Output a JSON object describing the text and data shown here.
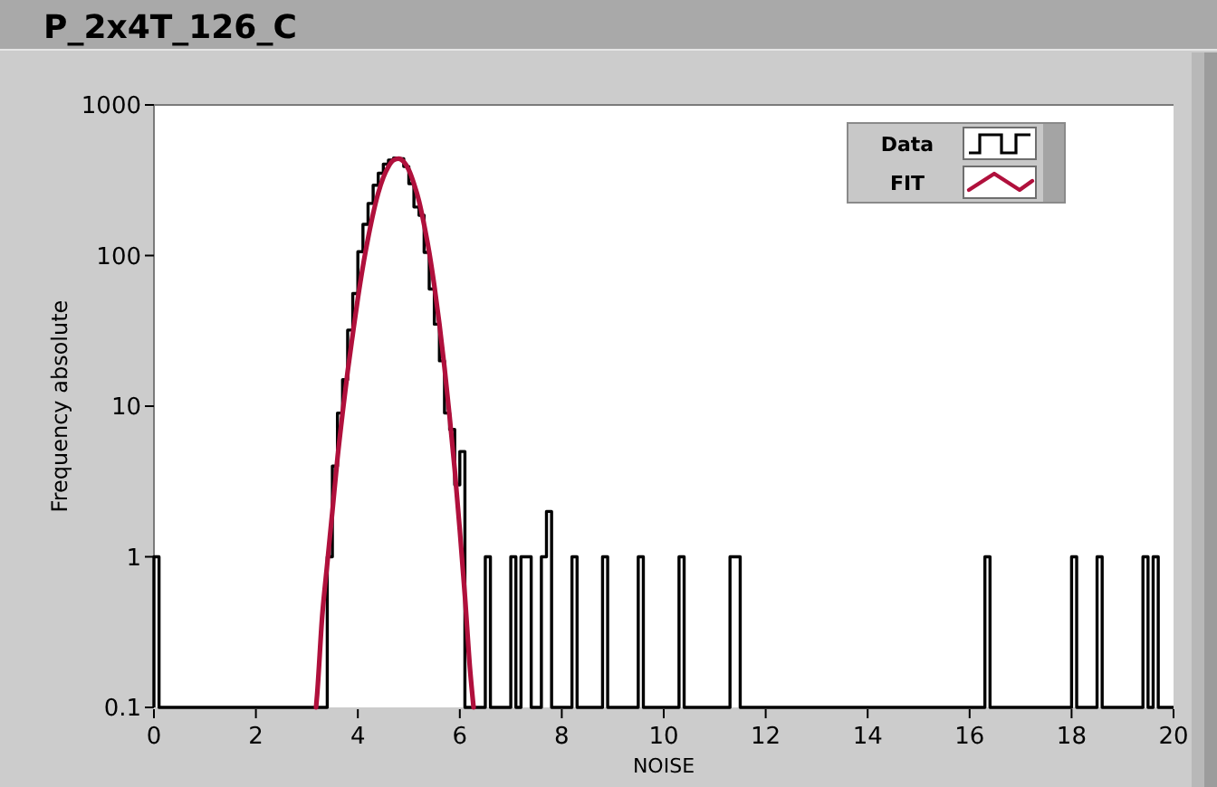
{
  "chart_data": {
    "type": "histogram",
    "title": "P_2x4T_126_C",
    "xlabel": "NOISE",
    "ylabel": "Frequency absolute",
    "xlim": [
      0,
      20
    ],
    "xticks": [
      0,
      2,
      4,
      6,
      8,
      10,
      12,
      14,
      16,
      18,
      20
    ],
    "ylim": [
      0.1,
      1000
    ],
    "yticks": [
      0.1,
      1,
      10,
      100,
      1000
    ],
    "log": "y",
    "legend": "top right",
    "series": [
      {
        "name": "Data",
        "color": "#000000",
        "bins": [
          0,
          0.1,
          0.2,
          0.3,
          0.4,
          0.5,
          0.6,
          0.7,
          0.8,
          0.9,
          1,
          1.1,
          1.2,
          1.3,
          1.4,
          1.5,
          1.6,
          1.7,
          1.8,
          1.9,
          2,
          2.1,
          2.2,
          2.3,
          2.4,
          2.5,
          2.6,
          2.7,
          2.8,
          2.9,
          3,
          3.1,
          3.2,
          3.3,
          3.4,
          3.5,
          3.6,
          3.7,
          3.8,
          3.9,
          4,
          4.1,
          4.2,
          4.3,
          4.4,
          4.5,
          4.6,
          4.7,
          4.8,
          4.9,
          5,
          5.1,
          5.2,
          5.3,
          5.4,
          5.5,
          5.6,
          5.7,
          5.8,
          5.9,
          6,
          6.1,
          6.2,
          6.3,
          6.4,
          6.5,
          6.6,
          6.7,
          6.8,
          6.9,
          7,
          7.1,
          7.2,
          7.3,
          7.4,
          7.5,
          7.6,
          7.7,
          7.8,
          7.9,
          8,
          8.1,
          8.2,
          8.3,
          8.4,
          8.5,
          8.6,
          8.7,
          8.8,
          8.9,
          9,
          9.1,
          9.2,
          9.3,
          9.4,
          9.5,
          9.6,
          9.7,
          9.8,
          9.9,
          10,
          10.1,
          10.2,
          10.3,
          10.4,
          10.5,
          10.6,
          10.7,
          10.8,
          10.9,
          11,
          11.1,
          11.2,
          11.3,
          11.4,
          11.5,
          11.6,
          11.7,
          11.8,
          11.9,
          12,
          12.1,
          12.2,
          12.3,
          12.4,
          12.5,
          12.6,
          12.7,
          12.8,
          12.9,
          13,
          13.1,
          13.2,
          13.3,
          13.4,
          13.5,
          13.6,
          13.7,
          13.8,
          13.9,
          14,
          14.1,
          14.2,
          14.3,
          14.4,
          14.5,
          14.6,
          14.7,
          14.8,
          14.9,
          15,
          15.1,
          15.2,
          15.3,
          15.4,
          15.5,
          15.6,
          15.7,
          15.8,
          15.9,
          16,
          16.1,
          16.2,
          16.3,
          16.4,
          16.5,
          16.6,
          16.7,
          16.8,
          16.9,
          17,
          17.1,
          17.2,
          17.3,
          17.4,
          17.5,
          17.6,
          17.7,
          17.8,
          17.9,
          18,
          18.1,
          18.2,
          18.3,
          18.4,
          18.5,
          18.6,
          18.7,
          18.8,
          18.9,
          19,
          19.1,
          19.2,
          19.3,
          19.4,
          19.5,
          19.6,
          19.7,
          19.8,
          19.9,
          20
        ],
        "values": [
          1,
          null,
          null,
          null,
          null,
          null,
          null,
          null,
          null,
          null,
          null,
          null,
          null,
          null,
          null,
          null,
          null,
          null,
          null,
          null,
          null,
          null,
          null,
          null,
          null,
          null,
          null,
          null,
          null,
          null,
          null,
          null,
          null,
          null,
          1,
          4,
          9,
          15,
          32,
          56,
          106,
          161,
          222,
          293,
          352,
          405,
          430,
          444,
          440,
          390,
          300,
          210,
          185,
          105,
          60,
          35,
          20,
          9,
          7,
          3,
          5,
          null,
          null,
          null,
          null,
          1,
          null,
          null,
          null,
          null,
          1,
          null,
          1,
          1,
          null,
          null,
          1,
          2,
          null,
          null,
          null,
          null,
          1,
          null,
          null,
          null,
          null,
          null,
          1,
          null,
          null,
          null,
          null,
          null,
          null,
          1,
          null,
          null,
          null,
          null,
          null,
          null,
          null,
          1,
          null,
          null,
          null,
          null,
          null,
          null,
          null,
          null,
          null,
          1,
          1,
          null,
          null,
          null,
          null,
          null,
          null,
          null,
          null,
          null,
          null,
          null,
          null,
          null,
          null,
          null,
          null,
          null,
          null,
          null,
          null,
          null,
          null,
          null,
          null,
          null,
          null,
          null,
          null,
          null,
          null,
          null,
          null,
          null,
          null,
          null,
          null,
          null,
          null,
          null,
          null,
          null,
          null,
          null,
          null,
          null,
          null,
          null,
          null,
          1,
          null,
          null,
          null,
          null,
          null,
          null,
          null,
          null,
          null,
          null,
          null,
          null,
          null,
          null,
          null,
          null,
          1,
          null,
          null,
          null,
          null,
          1,
          null,
          null,
          null,
          null,
          null,
          null,
          null,
          null,
          1,
          null,
          1,
          null,
          null,
          null
        ]
      },
      {
        "name": "FIT",
        "type": "line",
        "color": "#b0103c",
        "x": [
          3.18,
          3.2,
          3.3,
          3.4,
          3.5,
          3.6,
          3.7,
          3.8,
          3.9,
          4,
          4.1,
          4.2,
          4.3,
          4.4,
          4.5,
          4.6,
          4.7,
          4.8,
          4.9,
          5,
          5.1,
          5.2,
          5.3,
          5.4,
          5.5,
          5.6,
          5.7,
          5.8,
          5.9,
          6,
          6.1,
          6.2,
          6.27
        ],
        "values": [
          0.1,
          0.12,
          0.4,
          0.9,
          2,
          4.5,
          9,
          17,
          30,
          52,
          85,
          130,
          190,
          260,
          330,
          390,
          430,
          440,
          420,
          370,
          300,
          230,
          160,
          105,
          63,
          35,
          18,
          8.5,
          3.8,
          1.5,
          0.55,
          0.18,
          0.1
        ]
      }
    ]
  }
}
